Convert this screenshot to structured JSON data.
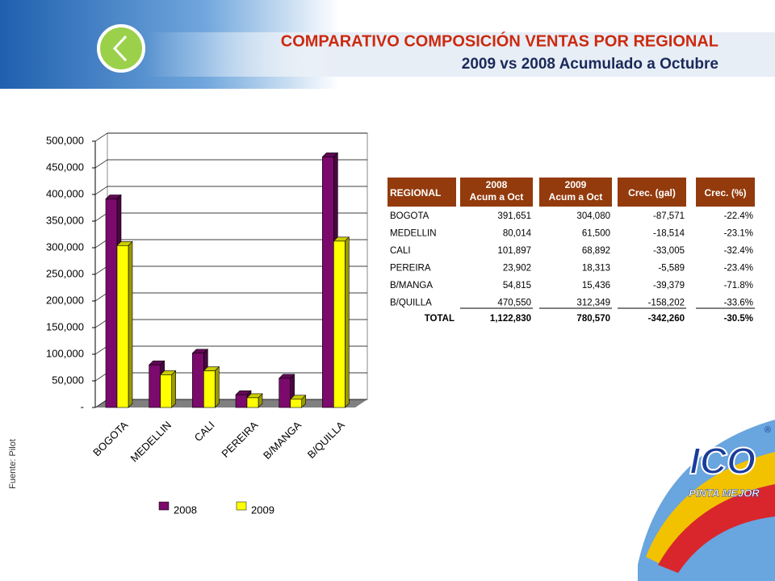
{
  "header": {
    "title": "COMPARATIVO COMPOSICIÓN VENTAS POR REGIONAL",
    "subtitle": "2009 vs 2008 Acumulado a Octubre"
  },
  "source": "Fuente: Pilot",
  "logo": {
    "name": "ICO",
    "slogan": "PINTA MEJOR",
    "mark": "®"
  },
  "chart_data": {
    "type": "bar",
    "categories": [
      "BOGOTA",
      "MEDELLIN",
      "CALI",
      "PEREIRA",
      "B/MANGA",
      "B/QUILLA"
    ],
    "series": [
      {
        "name": "2008",
        "color": "#7b0a6c",
        "values": [
          391651,
          80014,
          101897,
          23902,
          54815,
          470550
        ]
      },
      {
        "name": "2009",
        "color": "#ffff00",
        "values": [
          304080,
          61500,
          68892,
          18313,
          15436,
          312349
        ]
      }
    ],
    "ylim": [
      0,
      500000
    ],
    "yticks": [
      {
        "value": 0,
        "label": "-"
      },
      {
        "value": 50000,
        "label": "50,000"
      },
      {
        "value": 100000,
        "label": "100,000"
      },
      {
        "value": 150000,
        "label": "150,000"
      },
      {
        "value": 200000,
        "label": "200,000"
      },
      {
        "value": 250000,
        "label": "250,000"
      },
      {
        "value": 300000,
        "label": "300,000"
      },
      {
        "value": 350000,
        "label": "350,000"
      },
      {
        "value": 400000,
        "label": "400,000"
      },
      {
        "value": 450000,
        "label": "450,000"
      },
      {
        "value": 500000,
        "label": "500,000"
      }
    ],
    "grid": true,
    "legend": "bottom"
  },
  "table": {
    "header": [
      [
        "REGIONAL"
      ],
      [
        "2008",
        "Acum a Oct"
      ],
      [
        "2009",
        "Acum a Oct"
      ],
      [
        "Crec. (gal)"
      ],
      [
        "Crec. (%)"
      ]
    ],
    "rows": [
      [
        "BOGOTA",
        "391,651",
        "304,080",
        "-87,571",
        "-22.4%"
      ],
      [
        "MEDELLIN",
        "80,014",
        "61,500",
        "-18,514",
        "-23.1%"
      ],
      [
        "CALI",
        "101,897",
        "68,892",
        "-33,005",
        "-32.4%"
      ],
      [
        "PEREIRA",
        "23,902",
        "18,313",
        "-5,589",
        "-23.4%"
      ],
      [
        "B/MANGA",
        "54,815",
        "15,436",
        "-39,379",
        "-71.8%"
      ],
      [
        "B/QUILLA",
        "470,550",
        "312,349",
        "-158,202",
        "-33.6%"
      ]
    ],
    "total": [
      "TOTAL",
      "1,122,830",
      "780,570",
      "-342,260",
      "-30.5%"
    ]
  }
}
